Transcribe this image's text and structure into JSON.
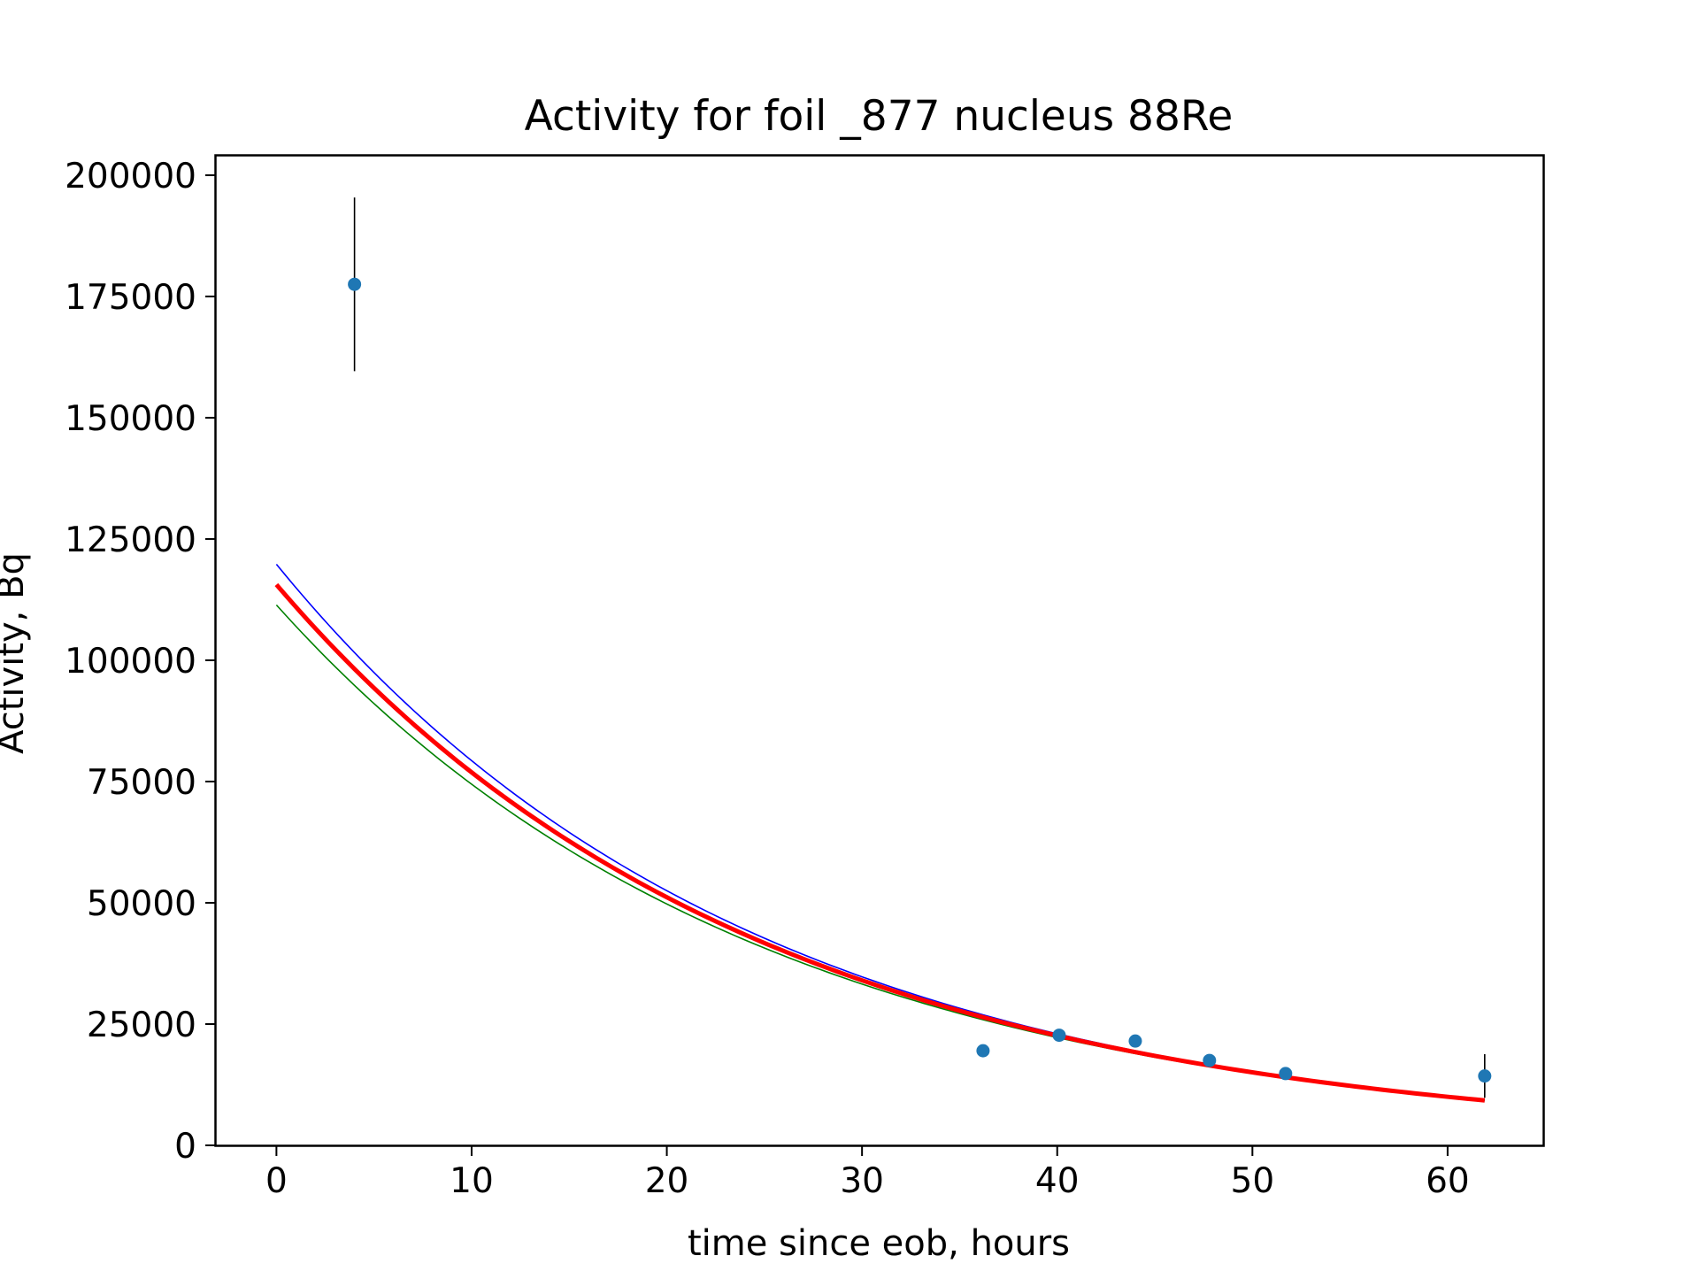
{
  "chart_data": {
    "type": "scatter",
    "title": "Activity for foil _877 nucleus 88Re",
    "xlabel": "time since eob, hours",
    "ylabel": "Activity, Bq",
    "xlim": [
      -3.1,
      64.9
    ],
    "ylim": [
      0,
      204000
    ],
    "xticks": [
      0,
      10,
      20,
      30,
      40,
      50,
      60
    ],
    "yticks": [
      0,
      25000,
      50000,
      75000,
      100000,
      125000,
      150000,
      175000,
      200000
    ],
    "grid": false,
    "legend": "none",
    "points": {
      "color": "#1f77b4",
      "errorbar_color": "#000000",
      "x": [
        4.0,
        36.2,
        40.1,
        44.0,
        47.8,
        51.7,
        61.9
      ],
      "y": [
        177500,
        19500,
        22700,
        21500,
        17500,
        14800,
        14300
      ],
      "yerr": [
        17900,
        900,
        1000,
        900,
        900,
        800,
        4500
      ]
    },
    "curves": [
      {
        "color": "#0000ff",
        "a0": 119800,
        "half_life_h": 16.8,
        "x_range": [
          0,
          61.9
        ]
      },
      {
        "color": "#008000",
        "a0": 111400,
        "half_life_h": 17.2,
        "x_range": [
          0,
          61.9
        ]
      },
      {
        "color": "#ff0000",
        "a0": 115600,
        "half_life_h": 17.0,
        "x_range": [
          0,
          61.9
        ]
      }
    ]
  }
}
